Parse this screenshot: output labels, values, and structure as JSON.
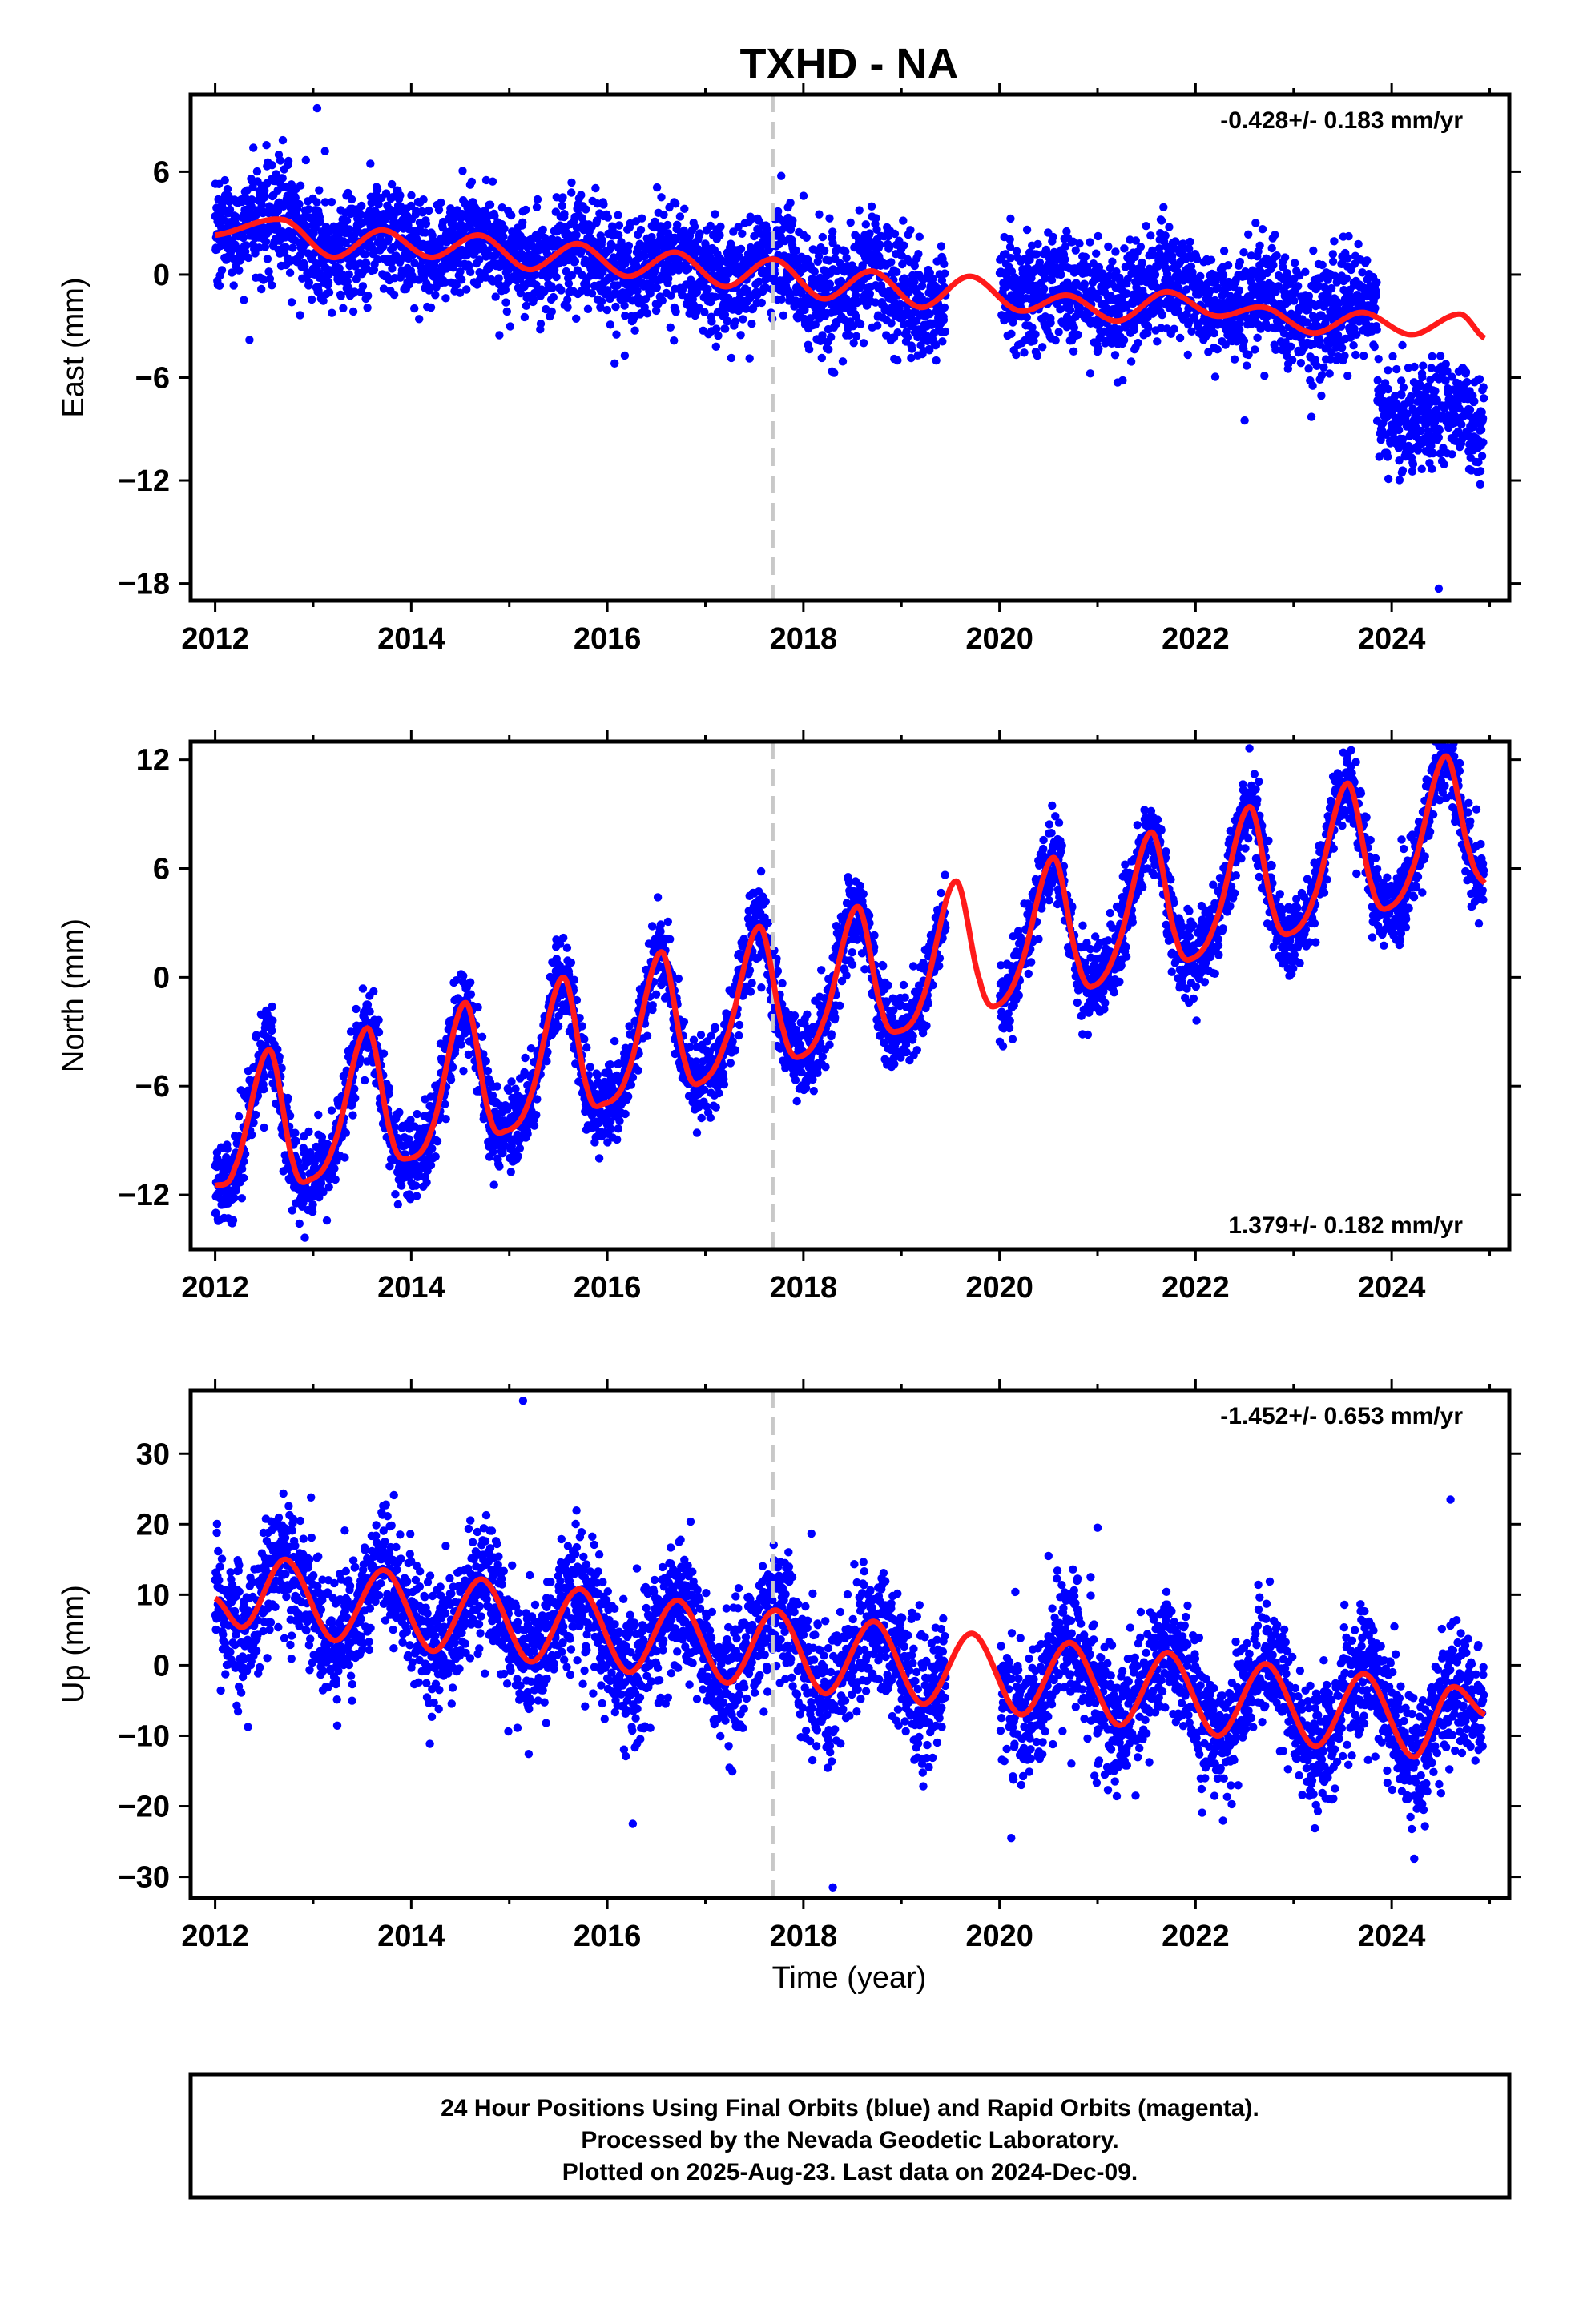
{
  "figure": {
    "title": "TXHD - NA",
    "xlabel": "Time (year)",
    "footer": [
      "24 Hour Positions Using Final Orbits (blue) and Rapid Orbits (magenta).",
      "Processed by the Nevada Geodetic Laboratory.",
      "Plotted on 2025-Aug-23. Last data on 2024-Dec-09."
    ]
  },
  "colors": {
    "points": "#0000ff",
    "model": "#ff1a1a",
    "event_line": "#c8c8c8",
    "frame": "#000000"
  },
  "chart_data": [
    {
      "type": "scatter",
      "component": "east",
      "ylabel": "East (mm)",
      "rate_text": "-0.428+/- 0.183 mm/yr",
      "rate_position": "top-right",
      "xlim": [
        2011.75,
        2025.2
      ],
      "ylim": [
        -19,
        10.5
      ],
      "xticks": [
        2012,
        2014,
        2016,
        2018,
        2020,
        2022,
        2024
      ],
      "yticks": [
        6,
        0,
        -6,
        -12,
        -18
      ],
      "ytick_labels": [
        "6",
        "0",
        "−6",
        "−12",
        "−18"
      ],
      "event_line_x": 2017.69,
      "data_gap": [
        2019.45,
        2020.0
      ],
      "trend_start": 2.2,
      "trend_slope": -0.428,
      "seasonal_amplitude": 1.0,
      "seasonal_peak_time": 2012.7,
      "noise_sd": 1.6,
      "offsets": [
        {
          "x": 2020.0,
          "dy": 0.6
        },
        {
          "x": 2023.85,
          "dy": -6.0
        }
      ],
      "outliers": [
        {
          "x": 2013.04,
          "y": 9.7
        },
        {
          "x": 2013.12,
          "y": 7.2
        },
        {
          "x": 2012.35,
          "y": -3.8
        },
        {
          "x": 2022.5,
          "y": -8.5
        },
        {
          "x": 2024.48,
          "y": -18.3
        }
      ],
      "model_knots": {
        "x": [
          2012.0,
          2012.7,
          2013.2,
          2013.7,
          2014.2,
          2014.7,
          2015.2,
          2015.7,
          2016.2,
          2016.7,
          2017.2,
          2017.7,
          2018.2,
          2018.7,
          2019.2,
          2019.7,
          2020.2,
          2020.7,
          2021.2,
          2021.7,
          2022.2,
          2022.7,
          2023.2,
          2023.7,
          2024.2,
          2024.7,
          2024.95
        ],
        "y": [
          2.3,
          3.2,
          1.0,
          2.6,
          1.0,
          2.3,
          0.3,
          1.8,
          -0.1,
          1.3,
          -0.7,
          0.9,
          -1.4,
          0.2,
          -1.9,
          -0.1,
          -2.1,
          -1.2,
          -2.7,
          -1.0,
          -2.4,
          -1.9,
          -3.4,
          -2.2,
          -3.5,
          -2.3,
          -3.7
        ]
      }
    },
    {
      "type": "scatter",
      "component": "north",
      "ylabel": "North (mm)",
      "rate_text": "1.379+/- 0.182 mm/yr",
      "rate_position": "bottom-right",
      "xlim": [
        2011.75,
        2025.2
      ],
      "ylim": [
        -15,
        13
      ],
      "xticks": [
        2012,
        2014,
        2016,
        2018,
        2020,
        2022,
        2024
      ],
      "yticks": [
        12,
        6,
        0,
        -6,
        -12
      ],
      "ytick_labels": [
        "12",
        "6",
        "0",
        "−6",
        "−12"
      ],
      "event_line_x": 2017.69,
      "data_gap": [
        2019.45,
        2020.0
      ],
      "trend_start": -8.6,
      "trend_slope": 1.379,
      "seasonal_amplitude": 3.6,
      "seasonal_peak_time": 2012.56,
      "noise_sd": 1.1,
      "offsets": [],
      "outliers": [],
      "model_knots": {
        "x": [
          2012.0,
          2012.2,
          2012.55,
          2012.8,
          2012.95,
          2013.2,
          2013.55,
          2013.8,
          2013.95,
          2014.2,
          2014.55,
          2014.8,
          2014.95,
          2015.2,
          2015.55,
          2015.8,
          2015.95,
          2016.2,
          2016.55,
          2016.8,
          2016.95,
          2017.2,
          2017.55,
          2017.8,
          2017.95,
          2018.2,
          2018.55,
          2018.8,
          2018.95,
          2019.2,
          2019.55,
          2019.8,
          2019.95,
          2020.2,
          2020.55,
          2020.8,
          2020.95,
          2021.2,
          2021.55,
          2021.8,
          2021.95,
          2022.2,
          2022.55,
          2022.8,
          2022.95,
          2023.2,
          2023.55,
          2023.8,
          2023.95,
          2024.2,
          2024.55,
          2024.8,
          2024.95
        ],
        "y": [
          -11.5,
          -10.5,
          -4.0,
          -10.3,
          -11.2,
          -9.4,
          -2.8,
          -8.8,
          -10.0,
          -8.5,
          -1.4,
          -7.6,
          -8.5,
          -6.8,
          0.0,
          -6.2,
          -7.0,
          -5.4,
          1.4,
          -4.8,
          -5.8,
          -3.6,
          2.8,
          -3.0,
          -4.4,
          -2.5,
          3.9,
          -1.8,
          -3.0,
          -1.4,
          5.3,
          -0.2,
          -1.6,
          0.4,
          6.6,
          0.9,
          -0.5,
          1.7,
          8.0,
          2.2,
          1.0,
          3.0,
          9.4,
          3.6,
          2.4,
          4.3,
          10.7,
          5.0,
          3.8,
          5.8,
          12.2,
          6.8,
          5.2
        ]
      }
    },
    {
      "type": "scatter",
      "component": "up",
      "ylabel": "Up (mm)",
      "rate_text": "-1.452+/- 0.653 mm/yr",
      "rate_position": "top-right",
      "xlim": [
        2011.75,
        2025.2
      ],
      "ylim": [
        -33,
        39
      ],
      "xticks": [
        2012,
        2014,
        2016,
        2018,
        2020,
        2022,
        2024
      ],
      "yticks": [
        30,
        20,
        10,
        0,
        -10,
        -20,
        -30
      ],
      "ytick_labels": [
        "30",
        "20",
        "10",
        "0",
        "−10",
        "−20",
        "−30"
      ],
      "event_line_x": 2017.69,
      "data_gap": [
        2019.45,
        2020.0
      ],
      "trend_start": 10.0,
      "trend_slope": -1.452,
      "seasonal_amplitude": 5.0,
      "seasonal_peak_time": 2012.72,
      "noise_sd": 4.6,
      "offsets": [],
      "outliers": [
        {
          "x": 2015.14,
          "y": 37.5
        },
        {
          "x": 2018.3,
          "y": -31.5
        },
        {
          "x": 2016.26,
          "y": -22.5
        },
        {
          "x": 2024.6,
          "y": 23.5
        },
        {
          "x": 2020.12,
          "y": -24.5
        },
        {
          "x": 2020.5,
          "y": 15.5
        },
        {
          "x": 2020.93,
          "y": 12.5
        },
        {
          "x": 2021.0,
          "y": 19.5
        }
      ],
      "model_knots": {
        "x": [
          2012.0,
          2012.3,
          2012.72,
          2013.22,
          2013.72,
          2014.22,
          2014.72,
          2015.22,
          2015.72,
          2016.22,
          2016.72,
          2017.22,
          2017.72,
          2018.22,
          2018.72,
          2019.22,
          2019.72,
          2020.22,
          2020.72,
          2021.22,
          2021.72,
          2022.22,
          2022.72,
          2023.22,
          2023.72,
          2024.22,
          2024.6,
          2024.95
        ],
        "y": [
          9.5,
          5.5,
          15.0,
          3.5,
          13.5,
          2.0,
          12.2,
          0.5,
          10.8,
          -1.0,
          9.2,
          -2.5,
          7.8,
          -4.0,
          6.2,
          -5.5,
          4.5,
          -7.0,
          3.2,
          -8.5,
          1.8,
          -10.0,
          0.2,
          -11.5,
          -1.2,
          -13.0,
          -3.2,
          -7.0
        ]
      }
    }
  ]
}
